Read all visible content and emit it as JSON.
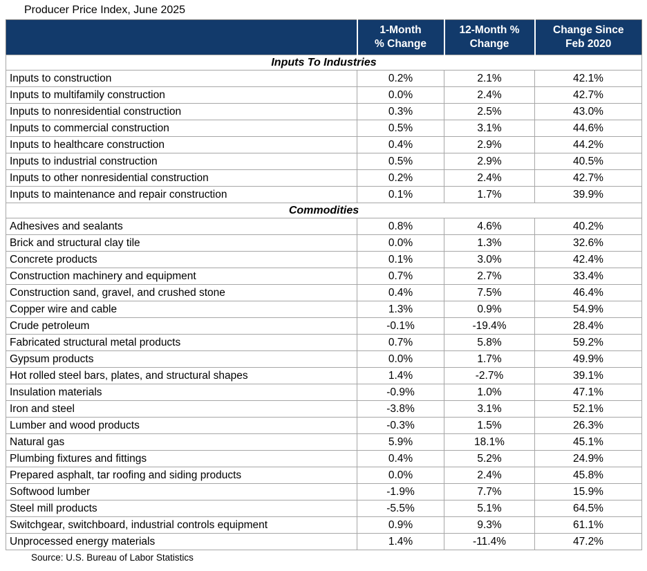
{
  "colors": {
    "header_bg": "#123A6B",
    "header_text": "#FFFFFF",
    "grid_line": "#A6A6A6",
    "outer_border": "#7F7F7F"
  },
  "chart_data": {
    "type": "table",
    "title": "Producer Price Index, June 2025",
    "source": "Source: U.S. Bureau of Labor Statistics",
    "column_headers": [
      {
        "line1": "1-Month",
        "line2": "% Change"
      },
      {
        "line1": "12-Month %",
        "line2": "Change"
      },
      {
        "line1": "Change Since",
        "line2": "Feb 2020"
      }
    ],
    "sections": [
      {
        "name": "Inputs To Industries",
        "rows": [
          {
            "label": "Inputs to construction",
            "values": [
              "0.2%",
              "2.1%",
              "42.1%"
            ]
          },
          {
            "label": "Inputs to multifamily construction",
            "values": [
              "0.0%",
              "2.4%",
              "42.7%"
            ]
          },
          {
            "label": "Inputs to nonresidential construction",
            "values": [
              "0.3%",
              "2.5%",
              "43.0%"
            ]
          },
          {
            "label": "Inputs to commercial construction",
            "values": [
              "0.5%",
              "3.1%",
              "44.6%"
            ]
          },
          {
            "label": "Inputs to healthcare construction",
            "values": [
              "0.4%",
              "2.9%",
              "44.2%"
            ]
          },
          {
            "label": "Inputs to industrial construction",
            "values": [
              "0.5%",
              "2.9%",
              "40.5%"
            ]
          },
          {
            "label": "Inputs to other nonresidential construction",
            "values": [
              "0.2%",
              "2.4%",
              "42.7%"
            ]
          },
          {
            "label": "Inputs to maintenance and repair construction",
            "values": [
              "0.1%",
              "1.7%",
              "39.9%"
            ]
          }
        ]
      },
      {
        "name": "Commodities",
        "rows": [
          {
            "label": "Adhesives and sealants",
            "values": [
              "0.8%",
              "4.6%",
              "40.2%"
            ]
          },
          {
            "label": "Brick and structural clay tile",
            "values": [
              "0.0%",
              "1.3%",
              "32.6%"
            ]
          },
          {
            "label": "Concrete products",
            "values": [
              "0.1%",
              "3.0%",
              "42.4%"
            ]
          },
          {
            "label": "Construction machinery and equipment",
            "values": [
              "0.7%",
              "2.7%",
              "33.4%"
            ]
          },
          {
            "label": "Construction sand, gravel, and crushed stone",
            "values": [
              "0.4%",
              "7.5%",
              "46.4%"
            ]
          },
          {
            "label": "Copper wire and cable",
            "values": [
              "1.3%",
              "0.9%",
              "54.9%"
            ]
          },
          {
            "label": "Crude petroleum",
            "values": [
              "-0.1%",
              "-19.4%",
              "28.4%"
            ]
          },
          {
            "label": "Fabricated structural metal products",
            "values": [
              "0.7%",
              "5.8%",
              "59.2%"
            ]
          },
          {
            "label": "Gypsum products",
            "values": [
              "0.0%",
              "1.7%",
              "49.9%"
            ]
          },
          {
            "label": "Hot rolled steel bars, plates, and structural shapes",
            "values": [
              "1.4%",
              "-2.7%",
              "39.1%"
            ]
          },
          {
            "label": "Insulation materials",
            "values": [
              "-0.9%",
              "1.0%",
              "47.1%"
            ]
          },
          {
            "label": "Iron and steel",
            "values": [
              "-3.8%",
              "3.1%",
              "52.1%"
            ]
          },
          {
            "label": "Lumber and wood products",
            "values": [
              "-0.3%",
              "1.5%",
              "26.3%"
            ]
          },
          {
            "label": "Natural gas",
            "values": [
              "5.9%",
              "18.1%",
              "45.1%"
            ]
          },
          {
            "label": "Plumbing fixtures and fittings",
            "values": [
              "0.4%",
              "5.2%",
              "24.9%"
            ]
          },
          {
            "label": "Prepared asphalt, tar roofing and siding products",
            "values": [
              "0.0%",
              "2.4%",
              "45.8%"
            ]
          },
          {
            "label": "Softwood lumber",
            "values": [
              "-1.9%",
              "7.7%",
              "15.9%"
            ]
          },
          {
            "label": "Steel mill products",
            "values": [
              "-5.5%",
              "5.1%",
              "64.5%"
            ]
          },
          {
            "label": "Switchgear, switchboard, industrial controls equipment",
            "values": [
              "0.9%",
              "9.3%",
              "61.1%"
            ]
          },
          {
            "label": "Unprocessed energy materials",
            "values": [
              "1.4%",
              "-11.4%",
              "47.2%"
            ]
          }
        ]
      }
    ]
  }
}
